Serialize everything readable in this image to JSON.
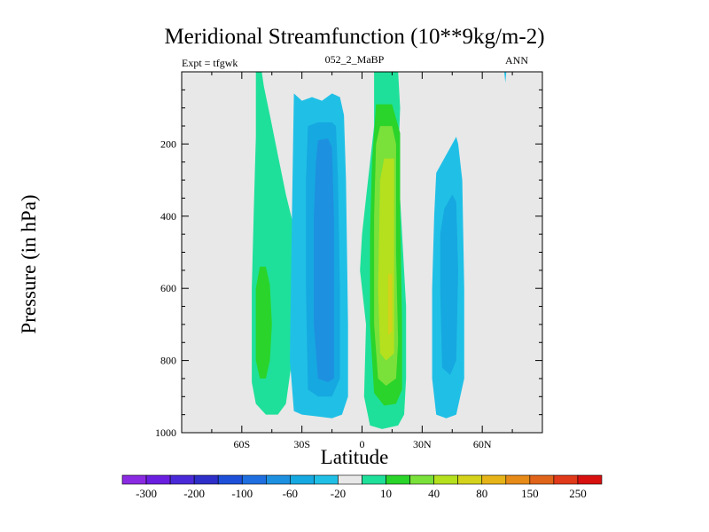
{
  "chart_data": {
    "type": "heatmap",
    "title": "Meridional Streamfunction (10**9kg/m-2)",
    "left_label": "Expt = tfgwk",
    "subtitle": "052_2_MaBP",
    "right_label": "ANN",
    "xlabel": "Latitude",
    "ylabel": "Pressure (in hPa)",
    "xlim": [
      -90,
      90
    ],
    "ylim": [
      1000,
      0
    ],
    "x_ticks": [
      {
        "value": -60,
        "label": "60S"
      },
      {
        "value": -30,
        "label": "30S"
      },
      {
        "value": 0,
        "label": "0"
      },
      {
        "value": 30,
        "label": "30N"
      },
      {
        "value": 60,
        "label": "60N"
      }
    ],
    "y_ticks": [
      {
        "value": 200,
        "label": "200"
      },
      {
        "value": 400,
        "label": "400"
      },
      {
        "value": 600,
        "label": "600"
      },
      {
        "value": 800,
        "label": "800"
      },
      {
        "value": 1000,
        "label": "1000"
      }
    ],
    "colorbar": {
      "colors": [
        "#8a2be2",
        "#6a1fe0",
        "#4a2ad8",
        "#2e2ec8",
        "#1d4fd8",
        "#1f6fe0",
        "#1e90e0",
        "#16a8e0",
        "#20c0e6",
        "#e8e8e8",
        "#1ee09a",
        "#2ad42a",
        "#7ae03a",
        "#b4e01e",
        "#d4d21a",
        "#e6b418",
        "#e68a18",
        "#e0641a",
        "#e03a1a",
        "#d81010"
      ],
      "labels": [
        {
          "after_index": 0,
          "label": "-300"
        },
        {
          "after_index": 2,
          "label": "-200"
        },
        {
          "after_index": 4,
          "label": "-100"
        },
        {
          "after_index": 6,
          "label": "-60"
        },
        {
          "after_index": 8,
          "label": "-20"
        },
        {
          "after_index": 10,
          "label": "10"
        },
        {
          "after_index": 12,
          "label": "40"
        },
        {
          "after_index": 14,
          "label": "80"
        },
        {
          "after_index": 16,
          "label": "150"
        },
        {
          "after_index": 18,
          "label": "250"
        }
      ]
    },
    "background_color": "#e8e8e8",
    "contour_regions": [
      {
        "name": "sh-outer-cell-10",
        "color": "#1ee09a",
        "level": 10,
        "points": [
          [
            -53,
            0
          ],
          [
            -50,
            0
          ],
          [
            -49,
            40
          ],
          [
            -46,
            120
          ],
          [
            -42,
            230
          ],
          [
            -38,
            340
          ],
          [
            -34,
            430
          ],
          [
            -33,
            600
          ],
          [
            -35,
            800
          ],
          [
            -38,
            920
          ],
          [
            -42,
            950
          ],
          [
            -48,
            950
          ],
          [
            -53,
            920
          ],
          [
            -55,
            860
          ],
          [
            -55,
            600
          ],
          [
            -54,
            380
          ],
          [
            -53,
            180
          ],
          [
            -53,
            60
          ]
        ]
      },
      {
        "name": "sh-outer-cell-40",
        "color": "#2ad42a",
        "level": 40,
        "points": [
          [
            -51,
            540
          ],
          [
            -48,
            540
          ],
          [
            -46,
            590
          ],
          [
            -45,
            700
          ],
          [
            -46,
            800
          ],
          [
            -48,
            850
          ],
          [
            -51,
            850
          ],
          [
            -53,
            800
          ],
          [
            -53,
            600
          ]
        ]
      },
      {
        "name": "sh-cell-neg20",
        "color": "#20c0e6",
        "level": -20,
        "points": [
          [
            -34,
            60
          ],
          [
            -30,
            80
          ],
          [
            -25,
            70
          ],
          [
            -20,
            80
          ],
          [
            -15,
            60
          ],
          [
            -11,
            70
          ],
          [
            -9,
            120
          ],
          [
            -8,
            300
          ],
          [
            -7,
            700
          ],
          [
            -7,
            900
          ],
          [
            -10,
            950
          ],
          [
            -15,
            960
          ],
          [
            -22,
            955
          ],
          [
            -30,
            950
          ],
          [
            -34,
            940
          ],
          [
            -36,
            800
          ],
          [
            -35,
            400
          ]
        ]
      },
      {
        "name": "sh-cell-neg60",
        "color": "#16a8e0",
        "level": -60,
        "points": [
          [
            -27,
            150
          ],
          [
            -22,
            140
          ],
          [
            -15,
            140
          ],
          [
            -13,
            150
          ],
          [
            -12,
            300
          ],
          [
            -11,
            600
          ],
          [
            -11,
            850
          ],
          [
            -15,
            900
          ],
          [
            -22,
            900
          ],
          [
            -27,
            880
          ],
          [
            -28,
            600
          ],
          [
            -28,
            300
          ]
        ]
      },
      {
        "name": "sh-cell-neg100",
        "color": "#1e90e0",
        "level": -100,
        "points": [
          [
            -22,
            190
          ],
          [
            -17,
            185
          ],
          [
            -15,
            210
          ],
          [
            -14,
            400
          ],
          [
            -14,
            700
          ],
          [
            -14,
            850
          ],
          [
            -17,
            860
          ],
          [
            -22,
            850
          ],
          [
            -24,
            700
          ],
          [
            -24,
            400
          ],
          [
            -23,
            250
          ]
        ]
      },
      {
        "name": "tropical-cell-10",
        "color": "#1ee09a",
        "level": 10,
        "points": [
          [
            6,
            0
          ],
          [
            18,
            0
          ],
          [
            19,
            100
          ],
          [
            18,
            250
          ],
          [
            20,
            450
          ],
          [
            22,
            650
          ],
          [
            22,
            850
          ],
          [
            21,
            950
          ],
          [
            18,
            980
          ],
          [
            10,
            990
          ],
          [
            4,
            980
          ],
          [
            1,
            900
          ],
          [
            2,
            700
          ],
          [
            -1,
            550
          ],
          [
            0,
            450
          ],
          [
            2,
            350
          ],
          [
            6,
            150
          ]
        ]
      },
      {
        "name": "tropical-cell-40",
        "color": "#2ad42a",
        "level": 40,
        "points": [
          [
            7,
            90
          ],
          [
            15,
            90
          ],
          [
            19,
            170
          ],
          [
            19,
            400
          ],
          [
            20,
            700
          ],
          [
            20,
            880
          ],
          [
            17,
            920
          ],
          [
            11,
            925
          ],
          [
            6,
            890
          ],
          [
            4,
            700
          ],
          [
            4,
            450
          ],
          [
            5,
            250
          ]
        ]
      },
      {
        "name": "tropical-cell-80",
        "color": "#7ae03a",
        "level": 80,
        "points": [
          [
            9,
            150
          ],
          [
            15,
            150
          ],
          [
            17,
            200
          ],
          [
            17,
            500
          ],
          [
            18,
            750
          ],
          [
            17,
            850
          ],
          [
            12,
            870
          ],
          [
            8,
            850
          ],
          [
            6,
            700
          ],
          [
            6,
            400
          ],
          [
            7,
            200
          ]
        ]
      },
      {
        "name": "tropical-cell-150",
        "color": "#b4e01e",
        "level": 150,
        "points": [
          [
            11,
            240
          ],
          [
            16,
            240
          ],
          [
            16,
            500
          ],
          [
            16,
            780
          ],
          [
            12,
            800
          ],
          [
            9,
            780
          ],
          [
            8,
            600
          ],
          [
            9,
            300
          ]
        ]
      },
      {
        "name": "tropical-cell-core",
        "color": "#d4d21a",
        "level": 250,
        "points": [
          [
            13,
            560
          ],
          [
            15,
            560
          ],
          [
            15,
            720
          ],
          [
            13,
            730
          ]
        ]
      },
      {
        "name": "nh-cell-neg20",
        "color": "#20c0e6",
        "level": -20,
        "points": [
          [
            37,
            280
          ],
          [
            44,
            210
          ],
          [
            47,
            180
          ],
          [
            48,
            200
          ],
          [
            50,
            300
          ],
          [
            51,
            600
          ],
          [
            51,
            850
          ],
          [
            47,
            950
          ],
          [
            42,
            960
          ],
          [
            37,
            950
          ],
          [
            35,
            850
          ],
          [
            35,
            600
          ],
          [
            36,
            400
          ]
        ]
      },
      {
        "name": "nh-cell-neg60",
        "color": "#16a8e0",
        "level": -60,
        "points": [
          [
            41,
            380
          ],
          [
            45,
            340
          ],
          [
            47,
            360
          ],
          [
            48,
            550
          ],
          [
            47,
            800
          ],
          [
            44,
            840
          ],
          [
            40,
            820
          ],
          [
            39,
            600
          ],
          [
            39,
            450
          ]
        ]
      },
      {
        "name": "nh-polar-sliver",
        "color": "#20c0e6",
        "level": -20,
        "points": [
          [
            71,
            0
          ],
          [
            72,
            0
          ],
          [
            71.5,
            30
          ]
        ]
      }
    ]
  }
}
